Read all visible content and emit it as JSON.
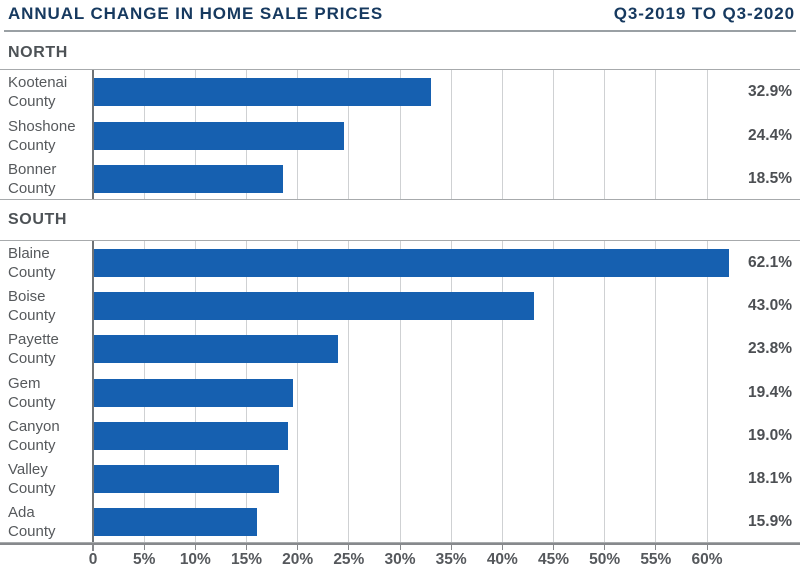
{
  "header": {
    "title": "ANNUAL CHANGE IN HOME SALE PRICES",
    "period": "Q3-2019 TO Q3-2020"
  },
  "chart_data": {
    "type": "bar",
    "orientation": "horizontal",
    "title": "ANNUAL CHANGE IN HOME SALE PRICES",
    "subtitle": "Q3-2019 TO Q3-2020",
    "unit": "%",
    "xlim": [
      0,
      62.5
    ],
    "grid": "vertical gridlines every 5%",
    "legend": "none",
    "x_ticks": [
      {
        "label": "0",
        "value": 0
      },
      {
        "label": "5%",
        "value": 5
      },
      {
        "label": "10%",
        "value": 10
      },
      {
        "label": "15%",
        "value": 15
      },
      {
        "label": "20%",
        "value": 20
      },
      {
        "label": "25%",
        "value": 25
      },
      {
        "label": "30%",
        "value": 30
      },
      {
        "label": "35%",
        "value": 35
      },
      {
        "label": "40%",
        "value": 40
      },
      {
        "label": "45%",
        "value": 45
      },
      {
        "label": "50%",
        "value": 50
      },
      {
        "label": "55%",
        "value": 55
      },
      {
        "label": "60%",
        "value": 60
      }
    ],
    "groups": [
      {
        "label": "NORTH",
        "bars": [
          {
            "name": "Kootenai County",
            "value": 32.9,
            "display": "32.9%"
          },
          {
            "name": "Shoshone County",
            "value": 24.4,
            "display": "24.4%"
          },
          {
            "name": "Bonner County",
            "value": 18.5,
            "display": "18.5%"
          }
        ]
      },
      {
        "label": "SOUTH",
        "bars": [
          {
            "name": "Blaine County",
            "value": 62.1,
            "display": "62.1%"
          },
          {
            "name": "Boise County",
            "value": 43.0,
            "display": "43.0%"
          },
          {
            "name": "Payette County",
            "value": 23.8,
            "display": "23.8%"
          },
          {
            "name": "Gem County",
            "value": 19.4,
            "display": "19.4%"
          },
          {
            "name": "Canyon County",
            "value": 19.0,
            "display": "19.0%"
          },
          {
            "name": "Valley County",
            "value": 18.1,
            "display": "18.1%"
          },
          {
            "name": "Ada County",
            "value": 15.9,
            "display": "15.9%"
          }
        ]
      }
    ]
  },
  "colors": {
    "bar": "#1660b0",
    "title_navy": "#16395f",
    "section_label": "#4d5256",
    "gridline": "#cfd1d3"
  }
}
